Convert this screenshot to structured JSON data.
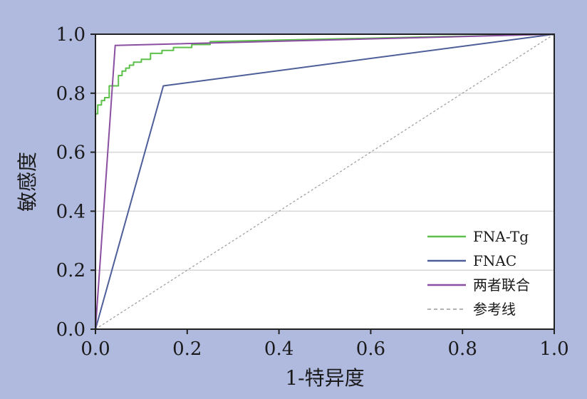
{
  "chart_data": {
    "type": "line",
    "title": "",
    "xlabel": "1-特异度",
    "ylabel": "敏感度",
    "xlim": [
      0,
      1
    ],
    "ylim": [
      0,
      1
    ],
    "xticks": [
      "0.0",
      "0.2",
      "0.4",
      "0.6",
      "0.8",
      "1.0"
    ],
    "yticks": [
      "0.0",
      "0.2",
      "0.4",
      "0.6",
      "0.8",
      "1.0"
    ],
    "grid": "horizontal",
    "legend": "bottom-right",
    "colors": {
      "background": "#b0badf",
      "plot_area": "#ffffff",
      "grid": "#d6d6d6"
    },
    "series": [
      {
        "name": "FNA-Tg",
        "color": "#5cc04a",
        "style": "solid",
        "x": [
          0,
          0,
          0.005,
          0.005,
          0.013,
          0.013,
          0.02,
          0.02,
          0.03,
          0.03,
          0.05,
          0.05,
          0.058,
          0.058,
          0.066,
          0.066,
          0.074,
          0.074,
          0.083,
          0.083,
          0.1,
          0.1,
          0.12,
          0.12,
          0.145,
          0.145,
          0.17,
          0.17,
          0.21,
          0.21,
          0.25,
          0.25,
          1
        ],
        "y": [
          0,
          0.73,
          0.73,
          0.76,
          0.76,
          0.775,
          0.775,
          0.785,
          0.785,
          0.825,
          0.825,
          0.86,
          0.86,
          0.875,
          0.875,
          0.885,
          0.885,
          0.895,
          0.895,
          0.905,
          0.905,
          0.915,
          0.915,
          0.935,
          0.935,
          0.945,
          0.945,
          0.955,
          0.955,
          0.965,
          0.965,
          0.975,
          1
        ]
      },
      {
        "name": "FNAC",
        "color": "#4d5e99",
        "style": "solid",
        "x": [
          0,
          0.148,
          1
        ],
        "y": [
          0,
          0.825,
          1
        ]
      },
      {
        "name": "两者联合",
        "color": "#8a4fa0",
        "style": "solid",
        "x": [
          0,
          0.043,
          1
        ],
        "y": [
          0,
          0.962,
          1
        ]
      },
      {
        "name": "参考线",
        "color": "#9a9a9a",
        "style": "dashed",
        "x": [
          0,
          1
        ],
        "y": [
          0,
          1
        ]
      }
    ]
  }
}
